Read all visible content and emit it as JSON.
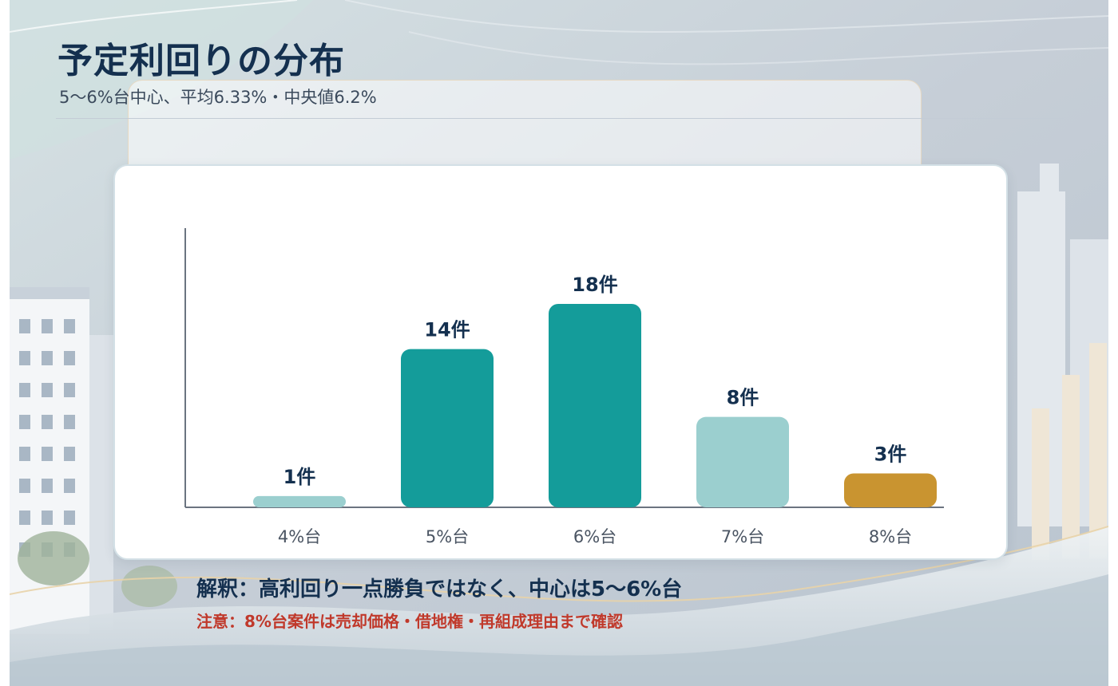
{
  "header": {
    "title": "予定利回りの分布",
    "subtitle": "5〜6%台中心、平均6.33%・中央値6.2%"
  },
  "chart_data": {
    "type": "bar",
    "categories": [
      "4%台",
      "5%台",
      "6%台",
      "7%台",
      "8%台"
    ],
    "values": [
      1,
      14,
      18,
      8,
      3
    ],
    "value_labels": [
      "1件",
      "14件",
      "18件",
      "8件",
      "3件"
    ],
    "bar_colors": [
      "#9bcfcf",
      "#149c9a",
      "#149c9a",
      "#9bcfcf",
      "#c99430"
    ],
    "ylim": [
      0,
      18
    ],
    "grid": false,
    "title": "",
    "xlabel": "",
    "ylabel": ""
  },
  "notes": {
    "interpretation": "解釈：高利回り一点勝負ではなく、中心は5〜6%台",
    "caution": "注意：8%台案件は売却価格・借地権・再組成理由まで確認"
  },
  "colors": {
    "title": "#14304f",
    "teal": "#149c9a",
    "light_teal": "#9bcfcf",
    "gold": "#c99430",
    "caution": "#c0392b"
  }
}
